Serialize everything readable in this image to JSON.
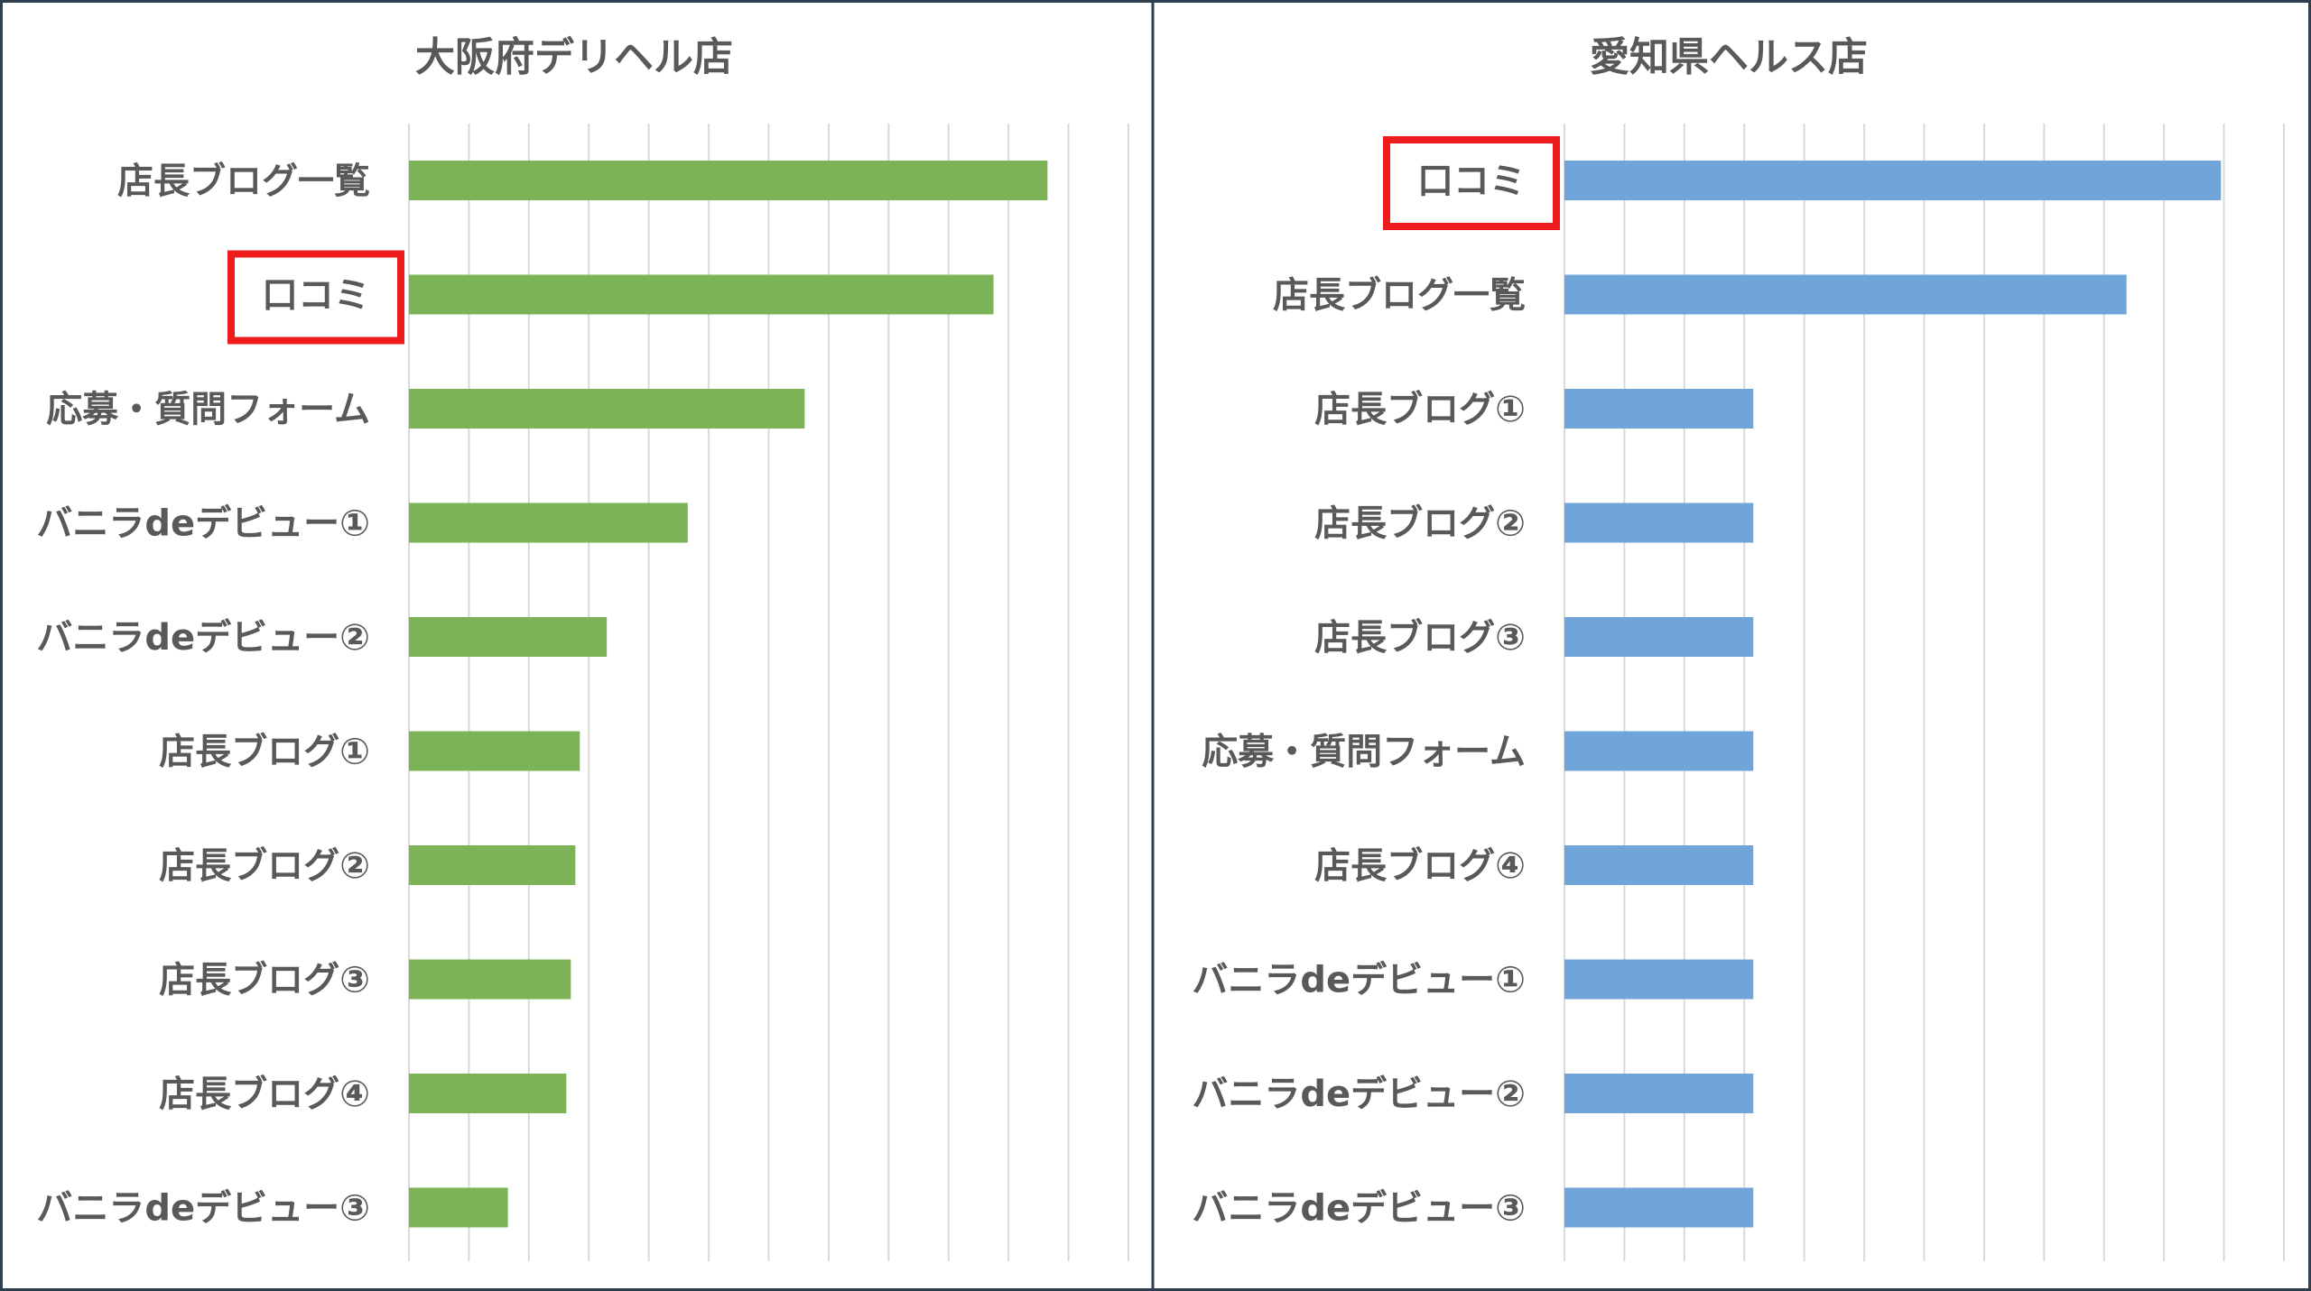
{
  "chart_data": [
    {
      "type": "bar",
      "orientation": "horizontal",
      "title": "大阪府デリヘル店",
      "categories": [
        "店長ブログ一覧",
        "口コミ",
        "応募・質問フォーム",
        "バニラdeデビュー①",
        "バニラdeデビュー②",
        "店長ブログ①",
        "店長ブログ②",
        "店長ブログ③",
        "店長ブログ④",
        "バニラdeデビュー③"
      ],
      "values": [
        7.1,
        6.5,
        4.4,
        3.1,
        2.2,
        1.9,
        1.85,
        1.8,
        1.75,
        1.1
      ],
      "xlim": [
        0,
        8
      ],
      "grid": true,
      "color": "#7CB356",
      "highlight": "口コミ",
      "highlight_color": "#EE1C1C"
    },
    {
      "type": "bar",
      "orientation": "horizontal",
      "title": "愛知県ヘルス店",
      "categories": [
        "口コミ",
        "店長ブログ一覧",
        "店長ブログ①",
        "店長ブログ②",
        "店長ブログ③",
        "応募・質問フォーム",
        "店長ブログ④",
        "バニラdeデビュー①",
        "バニラdeデビュー②",
        "バニラdeデビュー③"
      ],
      "values": [
        7.3,
        6.25,
        2.1,
        2.1,
        2.1,
        2.1,
        2.1,
        2.1,
        2.1,
        2.1
      ],
      "xlim": [
        0,
        8
      ],
      "grid": true,
      "color": "#6FA5D9",
      "highlight": "口コミ",
      "highlight_color": "#EE1C1C"
    }
  ]
}
